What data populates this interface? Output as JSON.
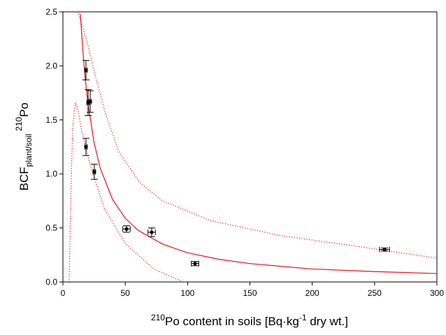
{
  "chart_data": {
    "type": "scatter",
    "xlabel_parts": [
      "210",
      "Po content in soils [Bq·kg",
      "-1",
      " dry wt.]"
    ],
    "ylabel_parts": [
      "BCF",
      "plant/soil",
      "210",
      "Po"
    ],
    "xlim": [
      0,
      300
    ],
    "ylim": [
      0,
      2.5
    ],
    "xticks": [
      0,
      50,
      100,
      150,
      200,
      250,
      300
    ],
    "yticks": [
      {
        "value": 0,
        "label": "0.0"
      },
      0.5,
      {
        "value": 1,
        "label": "1.0"
      },
      1.5,
      {
        "value": 2,
        "label": "2.0"
      },
      2.5
    ],
    "grid": false,
    "points": {
      "color": "#000000",
      "x": [
        18.5,
        20.2,
        21.9,
        18.5,
        25.2,
        51,
        71.2,
        106,
        258
      ],
      "values": [
        1.96,
        1.66,
        1.67,
        1.25,
        1.02,
        0.49,
        0.46,
        0.17,
        0.3
      ],
      "xerr": [
        1,
        1,
        1,
        1,
        1,
        3,
        3,
        3,
        4
      ],
      "yerr": [
        0.09,
        0.12,
        0.1,
        0.08,
        0.07,
        0.03,
        0.04,
        0.02,
        0.015
      ]
    },
    "series": [
      {
        "color": "#e8101a",
        "style": "solid",
        "x": [
          14,
          16,
          18,
          20,
          25,
          30,
          40,
          50,
          60,
          80,
          100,
          125,
          150,
          200,
          250,
          300
        ],
        "values": [
          2.48,
          2.14,
          1.87,
          1.66,
          1.29,
          1.05,
          0.76,
          0.59,
          0.48,
          0.35,
          0.27,
          0.21,
          0.17,
          0.12,
          0.096,
          0.078
        ]
      },
      {
        "color": "#e8101a",
        "style": "dotted",
        "x": [
          12,
          20,
          25,
          33.6,
          45,
          61.7,
          80,
          118,
          174,
          230,
          300
        ],
        "values": [
          2.5,
          2.2,
          1.95,
          1.58,
          1.2,
          0.92,
          0.75,
          0.57,
          0.43,
          0.34,
          0.22
        ]
      },
      {
        "color": "#e8101a",
        "style": "dotted",
        "x": [
          5,
          6,
          7,
          8,
          10,
          12,
          15,
          22.4,
          33.6,
          50.5,
          73,
          96.5
        ],
        "values": [
          0,
          0.6,
          1.1,
          1.45,
          1.66,
          1.6,
          1.4,
          1.06,
          0.67,
          0.35,
          0.12,
          0
        ]
      }
    ]
  }
}
